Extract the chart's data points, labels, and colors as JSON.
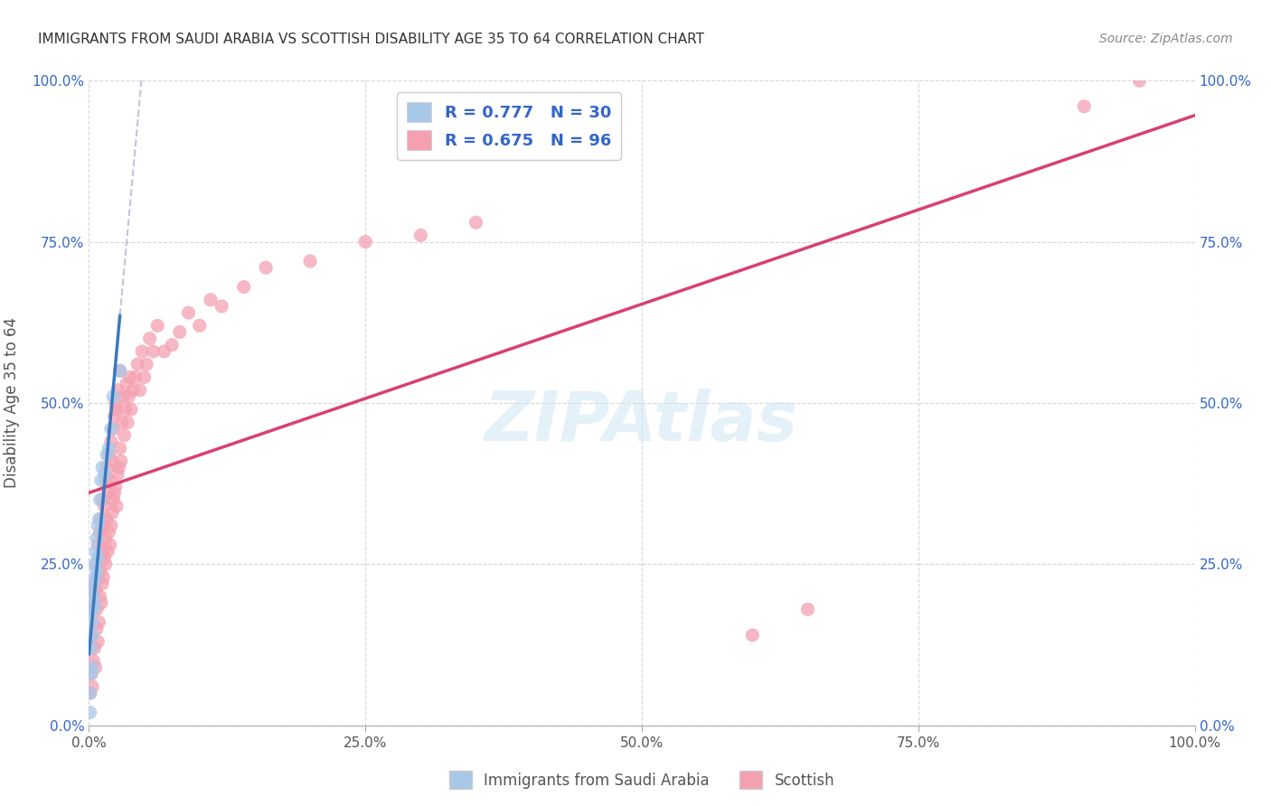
{
  "title": "IMMIGRANTS FROM SAUDI ARABIA VS SCOTTISH DISABILITY AGE 35 TO 64 CORRELATION CHART",
  "source": "Source: ZipAtlas.com",
  "ylabel": "Disability Age 35 to 64",
  "legend_label_blue": "Immigrants from Saudi Arabia",
  "legend_label_pink": "Scottish",
  "r_blue": 0.777,
  "n_blue": 30,
  "r_pink": 0.675,
  "n_pink": 96,
  "watermark": "ZIPAtlas",
  "blue_color": "#a8c8e8",
  "pink_color": "#f4a0b0",
  "blue_line_color": "#3a7abf",
  "pink_line_color": "#d94070",
  "legend_text_color": "#3366cc",
  "blue_scatter_x": [
    0.001,
    0.002,
    0.001,
    0.002,
    0.003,
    0.002,
    0.003,
    0.004,
    0.003,
    0.003,
    0.004,
    0.004,
    0.005,
    0.005,
    0.006,
    0.006,
    0.007,
    0.007,
    0.008,
    0.008,
    0.009,
    0.01,
    0.011,
    0.012,
    0.014,
    0.016,
    0.018,
    0.02,
    0.022,
    0.028
  ],
  "blue_scatter_y": [
    0.05,
    0.08,
    0.02,
    0.12,
    0.09,
    0.18,
    0.16,
    0.2,
    0.14,
    0.21,
    0.18,
    0.22,
    0.25,
    0.19,
    0.27,
    0.23,
    0.29,
    0.24,
    0.31,
    0.26,
    0.32,
    0.35,
    0.38,
    0.4,
    0.39,
    0.42,
    0.43,
    0.46,
    0.51,
    0.55
  ],
  "pink_scatter_x": [
    0.001,
    0.002,
    0.002,
    0.003,
    0.003,
    0.004,
    0.004,
    0.005,
    0.005,
    0.006,
    0.006,
    0.007,
    0.007,
    0.007,
    0.008,
    0.008,
    0.008,
    0.009,
    0.009,
    0.01,
    0.01,
    0.01,
    0.011,
    0.011,
    0.012,
    0.012,
    0.012,
    0.013,
    0.013,
    0.014,
    0.014,
    0.015,
    0.015,
    0.015,
    0.016,
    0.016,
    0.017,
    0.017,
    0.018,
    0.018,
    0.019,
    0.019,
    0.02,
    0.02,
    0.021,
    0.021,
    0.022,
    0.022,
    0.023,
    0.023,
    0.024,
    0.024,
    0.025,
    0.025,
    0.026,
    0.026,
    0.027,
    0.028,
    0.028,
    0.029,
    0.03,
    0.031,
    0.032,
    0.033,
    0.034,
    0.035,
    0.036,
    0.037,
    0.038,
    0.04,
    0.042,
    0.044,
    0.046,
    0.048,
    0.05,
    0.052,
    0.055,
    0.058,
    0.062,
    0.068,
    0.075,
    0.082,
    0.09,
    0.1,
    0.11,
    0.12,
    0.14,
    0.16,
    0.2,
    0.25,
    0.3,
    0.35,
    0.6,
    0.65,
    0.9,
    0.95
  ],
  "pink_scatter_y": [
    0.05,
    0.08,
    0.14,
    0.06,
    0.18,
    0.1,
    0.2,
    0.12,
    0.22,
    0.09,
    0.21,
    0.15,
    0.25,
    0.18,
    0.13,
    0.23,
    0.28,
    0.16,
    0.26,
    0.2,
    0.24,
    0.3,
    0.19,
    0.32,
    0.22,
    0.27,
    0.35,
    0.23,
    0.31,
    0.26,
    0.34,
    0.29,
    0.38,
    0.25,
    0.32,
    0.4,
    0.27,
    0.36,
    0.3,
    0.42,
    0.28,
    0.38,
    0.31,
    0.44,
    0.33,
    0.41,
    0.35,
    0.46,
    0.36,
    0.48,
    0.37,
    0.5,
    0.34,
    0.49,
    0.39,
    0.52,
    0.4,
    0.43,
    0.55,
    0.41,
    0.47,
    0.51,
    0.45,
    0.49,
    0.53,
    0.47,
    0.51,
    0.54,
    0.49,
    0.52,
    0.54,
    0.56,
    0.52,
    0.58,
    0.54,
    0.56,
    0.6,
    0.58,
    0.62,
    0.58,
    0.59,
    0.61,
    0.64,
    0.62,
    0.66,
    0.65,
    0.68,
    0.71,
    0.72,
    0.75,
    0.76,
    0.78,
    0.14,
    0.18,
    0.96,
    1.0
  ],
  "xlim": [
    0.0,
    1.0
  ],
  "ylim": [
    0.0,
    1.0
  ],
  "tick_values": [
    0.0,
    0.25,
    0.5,
    0.75,
    1.0
  ],
  "tick_labels": [
    "0.0%",
    "25.0%",
    "50.0%",
    "75.0%",
    "100.0%"
  ]
}
